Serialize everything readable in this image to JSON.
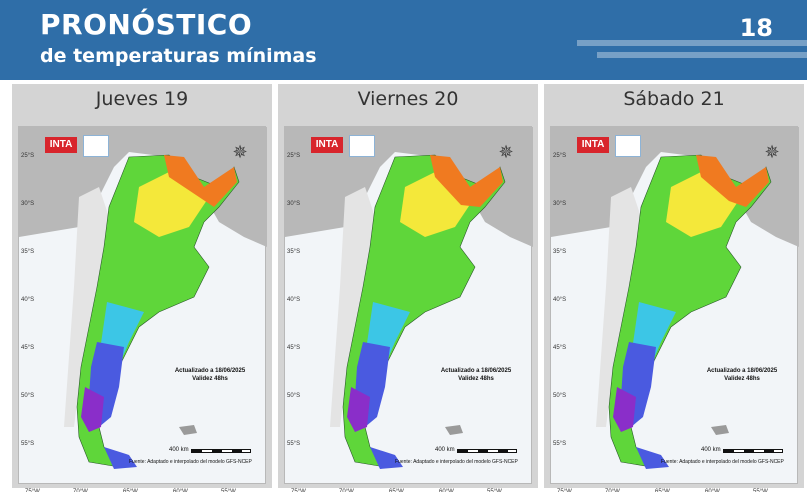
{
  "header": {
    "title": "PRONÓSTICO",
    "subtitle": "de temperaturas mínimas",
    "page_number": "18"
  },
  "panels": [
    {
      "day": "Jueves 19",
      "update_line1": "Actualizado a 18/06/2025",
      "update_line2": "Validez 48hs",
      "north_warm_level": 1.0
    },
    {
      "day": "Viernes 20",
      "update_line1": "Actualizado a 18/06/2025",
      "update_line2": "Validez 48hs",
      "north_warm_level": 0.6
    },
    {
      "day": "Sábado 21",
      "update_line1": "Actualizado a 18/06/2025",
      "update_line2": "Validez 48hs",
      "north_warm_level": 0.8
    }
  ],
  "map_common": {
    "logo_text": "INTA",
    "scale_label": "400 km",
    "source_text": "Fuente: Adaptado e interpolado del modelo GFS-NCEP",
    "latitudes": [
      "25°S",
      "30°S",
      "35°S",
      "40°S",
      "45°S",
      "50°S",
      "55°S"
    ],
    "longitudes": [
      "75°W",
      "70°W",
      "65°W",
      "60°W",
      "55°W"
    ],
    "colors": {
      "warm": "#f07a20",
      "yellow": "#f4e83a",
      "green": "#5fd63a",
      "cyan": "#3cc6e6",
      "blue": "#4a5ae0",
      "purple": "#8a2ec9",
      "background_land": "#b8b8b8",
      "chile_hatch": "#e4e4e4"
    }
  }
}
